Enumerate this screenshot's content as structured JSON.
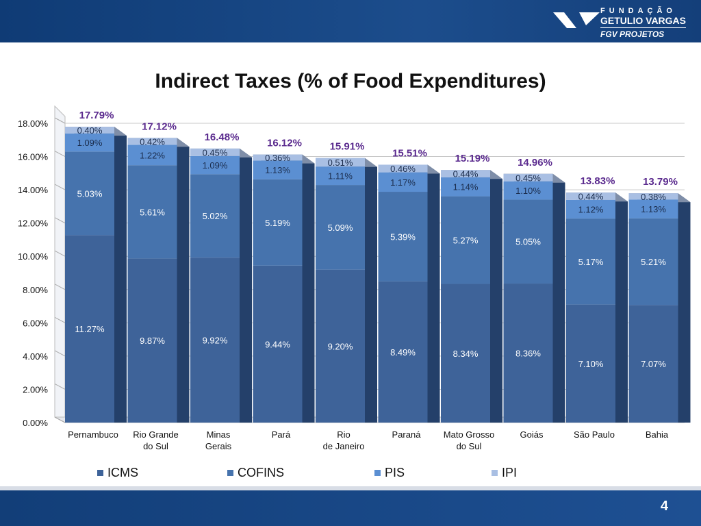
{
  "header": {
    "logo_line1": "FUNDAÇÃO",
    "logo_line2": "GETULIO VARGAS",
    "logo_line3": "FGV PROJETOS"
  },
  "footer": {
    "page_number": "4"
  },
  "chart_data": {
    "type": "bar",
    "stacked": true,
    "title": "Indirect Taxes (% of Food Expenditures)",
    "categories": [
      "Pernambuco",
      "Rio Grande do Sul",
      "Minas Gerais",
      "Pará",
      "Rio de Janeiro",
      "Paraná",
      "Mato Grosso do Sul",
      "Goiás",
      "São Paulo",
      "Bahia"
    ],
    "series": [
      {
        "name": "ICMS",
        "color": "#3e6399",
        "values": [
          11.27,
          9.87,
          9.92,
          9.44,
          9.2,
          8.49,
          8.34,
          8.36,
          7.1,
          7.07
        ],
        "labels": [
          "11.27%",
          "9.87%",
          "9.92%",
          "9.44%",
          "9.20%",
          "8.49%",
          "8.34%",
          "8.36%",
          "7.10%",
          "7.07%"
        ]
      },
      {
        "name": "COFINS",
        "color": "#4673ad",
        "values": [
          5.03,
          5.61,
          5.02,
          5.19,
          5.09,
          5.39,
          5.27,
          5.05,
          5.17,
          5.21
        ],
        "labels": [
          "5.03%",
          "5.61%",
          "5.02%",
          "5.19%",
          "5.09%",
          "5.39%",
          "5.27%",
          "5.05%",
          "5.17%",
          "5.21%"
        ]
      },
      {
        "name": "PIS",
        "color": "#5b8fd2",
        "values": [
          1.09,
          1.22,
          1.09,
          1.13,
          1.11,
          1.17,
          1.14,
          1.1,
          1.12,
          1.13
        ],
        "labels": [
          "1.09%",
          "1.22%",
          "1.09%",
          "1.13%",
          "1.11%",
          "1.17%",
          "1.14%",
          "1.10%",
          "1.12%",
          "1.13%"
        ]
      },
      {
        "name": "IPI",
        "color": "#a9bfe3",
        "values": [
          0.4,
          0.42,
          0.45,
          0.36,
          0.51,
          0.46,
          0.44,
          0.45,
          0.44,
          0.38
        ],
        "labels": [
          "0.40%",
          "0.42%",
          "0.45%",
          "0.36%",
          "0.51%",
          "0.46%",
          "0.44%",
          "0.45%",
          "0.44%",
          "0.38%"
        ]
      }
    ],
    "totals": [
      17.79,
      17.12,
      16.48,
      16.12,
      15.91,
      15.51,
      15.19,
      14.96,
      13.83,
      13.79
    ],
    "total_labels": [
      "17.79%",
      "17.12%",
      "16.48%",
      "16.12%",
      "15.91%",
      "15.51%",
      "15.19%",
      "14.96%",
      "13.83%",
      "13.79%"
    ],
    "total_color": "#5a2a8e",
    "ylim": [
      0,
      18
    ],
    "yticks": [
      "0.00%",
      "2.00%",
      "4.00%",
      "6.00%",
      "8.00%",
      "10.00%",
      "12.00%",
      "14.00%",
      "16.00%",
      "18.00%"
    ],
    "grid": true,
    "legend": "bottom"
  }
}
